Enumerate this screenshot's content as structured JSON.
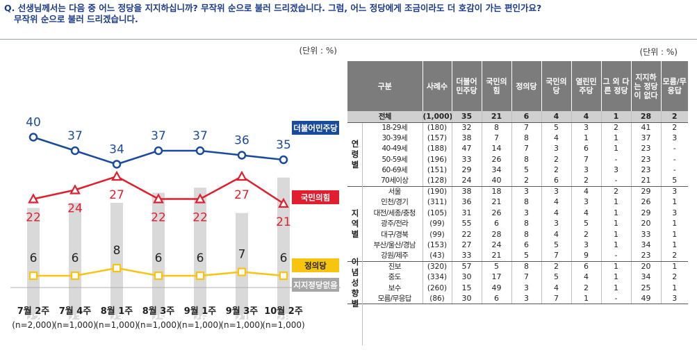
{
  "question": {
    "line1": "Q. 선생님께서는 다음 중 어느 정당을 지지하십니까? 무작위 순으로 불러 드리겠습니다.  그럼, 어느 정당에게 조금이라도 더 호감이 가는 편인가요?",
    "line2": "무작위 순으로 불러 드리겠습니다."
  },
  "chart_unit": "(단위 : %)",
  "table_unit": "(단위 : %)",
  "colors": {
    "dem": "#1a4a9c",
    "ppp": "#e01e2e",
    "justice": "#f7c40f",
    "none": "#a6a6a6",
    "bar": "#d9d9d9"
  },
  "chart_data": {
    "type": "line",
    "categories": [
      "7월 2주",
      "7월 4주",
      "8월 1주",
      "8월 3주",
      "9월 1주",
      "9월 3주",
      "10월 2주"
    ],
    "sample_sizes": [
      "(n=2,000)",
      "(n=1,000)",
      "(n=1,000)",
      "(n=1,000)",
      "(n=1,000)",
      "(n=1,000)",
      "(n=1,000)"
    ],
    "ylim": [
      0,
      45
    ],
    "series": [
      {
        "name": "더불어민주당",
        "type": "line",
        "marker": "circle",
        "color": "#1a4a9c",
        "values": [
          40,
          37,
          34,
          37,
          37,
          36,
          35
        ]
      },
      {
        "name": "국민의힘",
        "type": "line",
        "marker": "triangle",
        "color": "#e01e2e",
        "values": [
          22,
          24,
          27,
          22,
          22,
          27,
          21
        ]
      },
      {
        "name": "정의당",
        "type": "line",
        "marker": "square",
        "color": "#f7c40f",
        "values": [
          6,
          6,
          8,
          6,
          6,
          7,
          6
        ]
      },
      {
        "name": "지지정당없음",
        "type": "bar",
        "color": "#d9d9d9",
        "values": [
          22,
          23,
          23,
          25,
          26,
          21,
          28
        ]
      }
    ]
  },
  "table": {
    "header_group": "구분",
    "header_n": "사례수",
    "columns": [
      "더불어민주당",
      "국민의힘",
      "정의당",
      "국민의당",
      "열린민주당",
      "그 외 다른 정당",
      "지지하는 정당이 없다",
      "모름/무응답"
    ],
    "total": {
      "label": "전체",
      "n": "(1,000)",
      "values": [
        "35",
        "21",
        "6",
        "4",
        "4",
        "1",
        "28",
        "2"
      ]
    },
    "groups": [
      {
        "name": "연령별",
        "rows": [
          {
            "label": "18-29세",
            "n": "(180)",
            "values": [
              "32",
              "8",
              "7",
              "5",
              "3",
              "2",
              "41",
              "2"
            ]
          },
          {
            "label": "30-39세",
            "n": "(157)",
            "values": [
              "38",
              "7",
              "8",
              "4",
              "1",
              "1",
              "37",
              "3"
            ]
          },
          {
            "label": "40-49세",
            "n": "(188)",
            "values": [
              "47",
              "14",
              "7",
              "3",
              "6",
              "1",
              "23",
              "-"
            ]
          },
          {
            "label": "50-59세",
            "n": "(196)",
            "values": [
              "33",
              "26",
              "8",
              "2",
              "7",
              "-",
              "23",
              "-"
            ]
          },
          {
            "label": "60-69세",
            "n": "(151)",
            "values": [
              "29",
              "34",
              "5",
              "2",
              "3",
              "3",
              "23",
              "-"
            ]
          },
          {
            "label": "70세이상",
            "n": "(128)",
            "values": [
              "24",
              "40",
              "2",
              "6",
              "2",
              "-",
              "21",
              "5"
            ]
          }
        ]
      },
      {
        "name": "지역별",
        "rows": [
          {
            "label": "서울",
            "n": "(190)",
            "values": [
              "38",
              "18",
              "3",
              "3",
              "4",
              "2",
              "29",
              "3"
            ]
          },
          {
            "label": "인천/경기",
            "n": "(311)",
            "values": [
              "36",
              "21",
              "8",
              "4",
              "3",
              "1",
              "26",
              "1"
            ]
          },
          {
            "label": "대전/세종/충청",
            "n": "(105)",
            "values": [
              "31",
              "26",
              "3",
              "4",
              "4",
              "1",
              "29",
              "3"
            ]
          },
          {
            "label": "광주/전라",
            "n": "(99)",
            "values": [
              "55",
              "6",
              "8",
              "3",
              "5",
              "1",
              "20",
              "1"
            ]
          },
          {
            "label": "대구/경북",
            "n": "(99)",
            "values": [
              "22",
              "28",
              "8",
              "4",
              "2",
              "1",
              "33",
              "1"
            ]
          },
          {
            "label": "부산/울산/경남",
            "n": "(153)",
            "values": [
              "27",
              "24",
              "6",
              "5",
              "3",
              "1",
              "34",
              "1"
            ]
          },
          {
            "label": "강원/제주",
            "n": "(43)",
            "values": [
              "33",
              "21",
              "5",
              "7",
              "9",
              "-",
              "23",
              "2"
            ]
          }
        ]
      },
      {
        "name": "이념성향별",
        "rows": [
          {
            "label": "진보",
            "n": "(320)",
            "values": [
              "57",
              "5",
              "8",
              "2",
              "6",
              "1",
              "20",
              "1"
            ]
          },
          {
            "label": "중도",
            "n": "(334)",
            "values": [
              "30",
              "17",
              "7",
              "5",
              "4",
              "1",
              "34",
              "2"
            ]
          },
          {
            "label": "보수",
            "n": "(260)",
            "values": [
              "15",
              "49",
              "3",
              "4",
              "2",
              "1",
              "25",
              "1"
            ]
          },
          {
            "label": "모름/무응답",
            "n": "(86)",
            "values": [
              "30",
              "6",
              "3",
              "7",
              "1",
              "-",
              "49",
              "3"
            ]
          }
        ]
      }
    ]
  }
}
